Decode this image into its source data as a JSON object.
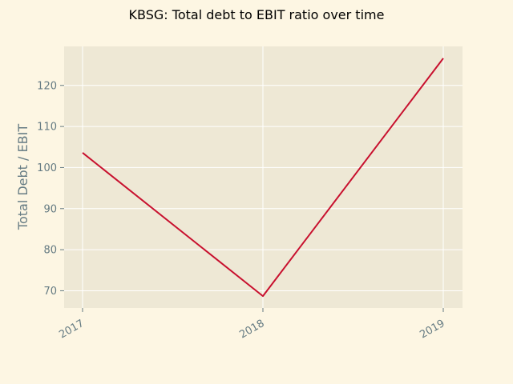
{
  "chart_data": {
    "type": "line",
    "title": "KBSG: Total debt to EBIT ratio over time",
    "xlabel": "",
    "ylabel": "Total Debt / EBIT",
    "categories": [
      "2017",
      "2018",
      "2019"
    ],
    "series": [
      {
        "values": [
          103.6,
          68.7,
          126.6
        ]
      }
    ],
    "ylim": [
      65.8,
      129.5
    ],
    "yticks": [
      "70",
      "80",
      "90",
      "100",
      "110",
      "120"
    ],
    "grid": true,
    "legend": "none",
    "colors": {
      "background": "#fdf6e3",
      "plot_background": "#eee8d5",
      "line": "#c8102e",
      "grid": "#ffffff",
      "tick_text": "#657b83"
    }
  }
}
